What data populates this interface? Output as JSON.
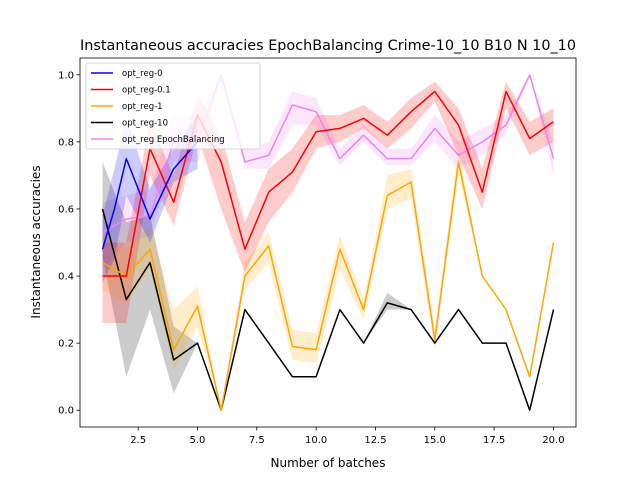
{
  "chart_data": {
    "type": "line",
    "title": "Instantaneous accuracies EpochBalancing Crime-10_10 B10 N 10_10",
    "xlabel": "Number of batches",
    "ylabel": "Instantaneous accuracies",
    "xlim": [
      0.05,
      20.95
    ],
    "ylim": [
      -0.05,
      1.05
    ],
    "xticks": [
      2.5,
      5.0,
      7.5,
      10.0,
      12.5,
      15.0,
      17.5,
      20.0
    ],
    "xtick_labels": [
      "2.5",
      "5.0",
      "7.5",
      "10.0",
      "12.5",
      "15.0",
      "17.5",
      "20.0"
    ],
    "yticks": [
      0.0,
      0.2,
      0.4,
      0.6,
      0.8,
      1.0
    ],
    "ytick_labels": [
      "0.0",
      "0.2",
      "0.4",
      "0.6",
      "0.8",
      "1.0"
    ],
    "grid": false,
    "legend_position": "top-left",
    "x": [
      1,
      2,
      3,
      4,
      5,
      6,
      7,
      8,
      9,
      10,
      11,
      12,
      13,
      14,
      15,
      16,
      17,
      18,
      19,
      20
    ],
    "series": [
      {
        "name": "opt_reg-0",
        "color": "#0000ff",
        "x": [
          1,
          1.5,
          2,
          3,
          4,
          5
        ],
        "values": [
          0.48,
          0.6,
          0.75,
          0.57,
          0.72,
          0.8
        ],
        "lower": [
          0.38,
          0.45,
          0.64,
          0.5,
          0.68,
          0.72
        ],
        "upper": [
          0.58,
          0.72,
          0.87,
          0.66,
          0.78,
          0.88
        ]
      },
      {
        "name": "opt_reg-0.1",
        "color": "#ff0000",
        "x": [
          1,
          2,
          3,
          4,
          5,
          6,
          7,
          8,
          9,
          10,
          11,
          12,
          13,
          14,
          15,
          16,
          17,
          18,
          19,
          20
        ],
        "values": [
          0.4,
          0.4,
          0.78,
          0.62,
          0.88,
          0.74,
          0.48,
          0.65,
          0.71,
          0.83,
          0.84,
          0.87,
          0.82,
          0.89,
          0.95,
          0.85,
          0.65,
          0.95,
          0.81,
          0.86
        ],
        "lower": [
          0.26,
          0.26,
          0.7,
          0.55,
          0.82,
          0.6,
          0.41,
          0.56,
          0.65,
          0.78,
          0.8,
          0.84,
          0.78,
          0.84,
          0.92,
          0.76,
          0.6,
          0.9,
          0.76,
          0.8
        ],
        "upper": [
          0.5,
          0.5,
          0.86,
          0.7,
          0.94,
          0.82,
          0.56,
          0.72,
          0.78,
          0.88,
          0.88,
          0.91,
          0.86,
          0.93,
          0.98,
          0.9,
          0.72,
          0.98,
          0.86,
          0.9
        ]
      },
      {
        "name": "opt_reg-1",
        "color": "#ffa500",
        "x": [
          1,
          2,
          3,
          4,
          5,
          6,
          7,
          8,
          9,
          10,
          11,
          12,
          13,
          14,
          15,
          16,
          17,
          18,
          19,
          20
        ],
        "values": [
          0.44,
          0.4,
          0.48,
          0.18,
          0.31,
          0.0,
          0.4,
          0.49,
          0.19,
          0.18,
          0.48,
          0.3,
          0.64,
          0.68,
          0.21,
          0.74,
          0.4,
          0.3,
          0.1,
          0.5
        ],
        "lower": [
          0.36,
          0.32,
          0.42,
          0.12,
          0.25,
          0.0,
          0.36,
          0.44,
          0.15,
          0.14,
          0.42,
          0.27,
          0.6,
          0.63,
          0.18,
          0.7,
          0.4,
          0.3,
          0.1,
          0.5
        ],
        "upper": [
          0.52,
          0.48,
          0.55,
          0.3,
          0.37,
          0.0,
          0.44,
          0.53,
          0.24,
          0.23,
          0.52,
          0.33,
          0.7,
          0.72,
          0.24,
          0.78,
          0.4,
          0.3,
          0.1,
          0.5
        ]
      },
      {
        "name": "opt_reg-10",
        "color": "#000000",
        "x": [
          1,
          2,
          3,
          4,
          5,
          6,
          7,
          8,
          9,
          10,
          11,
          12,
          13,
          14,
          15,
          16,
          17,
          18,
          19,
          20
        ],
        "values": [
          0.6,
          0.33,
          0.44,
          0.15,
          0.2,
          0.0,
          0.3,
          0.2,
          0.1,
          0.1,
          0.3,
          0.2,
          0.32,
          0.3,
          0.2,
          0.3,
          0.2,
          0.2,
          0.0,
          0.3
        ],
        "lower": [
          0.46,
          0.1,
          0.3,
          0.05,
          0.2,
          0.0,
          0.3,
          0.2,
          0.1,
          0.1,
          0.3,
          0.2,
          0.3,
          0.3,
          0.2,
          0.3,
          0.2,
          0.2,
          0.0,
          0.3
        ],
        "upper": [
          0.74,
          0.56,
          0.58,
          0.25,
          0.2,
          0.0,
          0.3,
          0.2,
          0.1,
          0.1,
          0.3,
          0.2,
          0.35,
          0.3,
          0.2,
          0.3,
          0.2,
          0.2,
          0.0,
          0.3
        ]
      },
      {
        "name": "opt_reg EpochBalancing",
        "color": "#ee82ee",
        "x": [
          1,
          2,
          3,
          4,
          5,
          6,
          7,
          8,
          9,
          10,
          11,
          12,
          13,
          14,
          15,
          16,
          17,
          18,
          19,
          20
        ],
        "values": [
          0.53,
          0.57,
          0.58,
          0.8,
          0.8,
          1.0,
          0.74,
          0.76,
          0.91,
          0.89,
          0.75,
          0.82,
          0.75,
          0.75,
          0.84,
          0.76,
          0.8,
          0.85,
          1.0,
          0.75
        ],
        "lower": [
          0.42,
          0.5,
          0.52,
          0.74,
          0.74,
          1.0,
          0.72,
          0.72,
          0.85,
          0.85,
          0.73,
          0.8,
          0.73,
          0.73,
          0.8,
          0.72,
          0.76,
          0.82,
          1.0,
          0.7
        ],
        "upper": [
          0.62,
          0.64,
          0.66,
          0.88,
          0.88,
          1.0,
          0.78,
          0.8,
          0.95,
          0.93,
          0.78,
          0.85,
          0.78,
          0.78,
          0.88,
          0.8,
          0.84,
          0.88,
          1.0,
          0.8
        ]
      }
    ]
  }
}
